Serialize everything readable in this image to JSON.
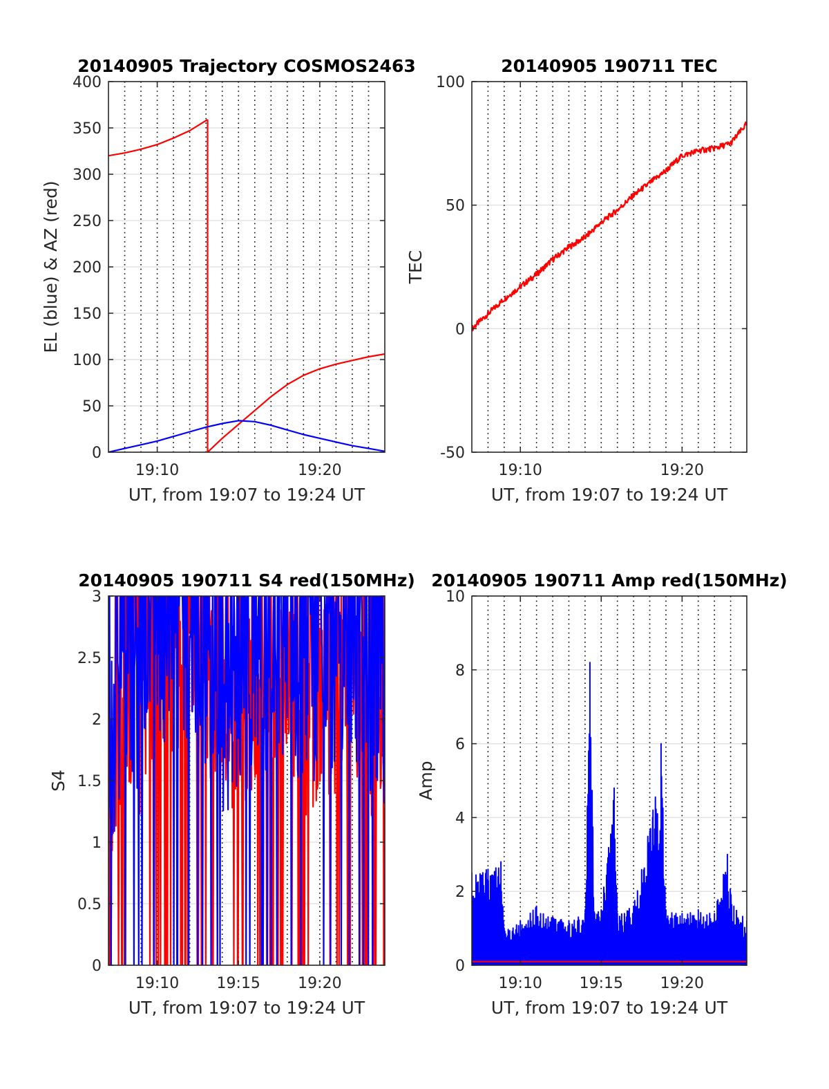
{
  "chart_data": [
    {
      "type": "line",
      "title": "20140905 Trajectory COSMOS2463",
      "xlabel": "UT, from 19:07 to 19:24 UT",
      "ylabel": "EL (blue) & AZ (red)",
      "xlim": [
        7,
        24
      ],
      "ylim": [
        0,
        400
      ],
      "xticks": [
        10,
        20
      ],
      "xtick_labels": [
        "19:10",
        "19:20"
      ],
      "yticks": [
        0,
        50,
        100,
        150,
        200,
        250,
        300,
        350,
        400
      ],
      "ytick_labels": [
        "0",
        "50",
        "100",
        "150",
        "200",
        "250",
        "300",
        "350",
        "400"
      ],
      "grid": true,
      "colors": {
        "el": "#0000ff",
        "az": "#ff0000"
      },
      "series": [
        {
          "key": "az_a",
          "color": "#ff0000",
          "x": [
            7,
            8,
            9,
            10,
            11,
            12,
            13.1
          ],
          "y": [
            320,
            323,
            327,
            332,
            339,
            347,
            359
          ]
        },
        {
          "key": "az_b",
          "color": "#ff0000",
          "x": [
            13.1,
            13.1,
            14,
            15,
            16,
            17,
            18,
            19,
            20,
            21,
            22,
            23,
            24
          ],
          "y": [
            359,
            0,
            15,
            30,
            45,
            60,
            73,
            83,
            90,
            95,
            99,
            103,
            106
          ]
        },
        {
          "key": "el",
          "color": "#0000ff",
          "x": [
            7,
            8,
            9,
            10,
            11,
            12,
            13,
            14,
            15,
            16,
            17,
            18,
            19,
            20,
            21,
            22,
            23,
            24
          ],
          "y": [
            0,
            4,
            8,
            12,
            17,
            22,
            27,
            31,
            34,
            33,
            29,
            24,
            19,
            15,
            11,
            7,
            4,
            1
          ]
        }
      ]
    },
    {
      "type": "line",
      "title": "20140905 190711 TEC",
      "xlabel": "UT, from 19:07 to 19:24 UT",
      "ylabel": "TEC",
      "xlim": [
        7,
        24
      ],
      "ylim": [
        -50,
        100
      ],
      "xticks": [
        10,
        20
      ],
      "xtick_labels": [
        "19:10",
        "19:20"
      ],
      "yticks": [
        -50,
        0,
        50,
        100
      ],
      "ytick_labels": [
        "-50",
        "0",
        "50",
        "100"
      ],
      "grid": true,
      "series": [
        {
          "key": "tec",
          "color": "#ff0000",
          "x": [
            7,
            8,
            9,
            10,
            11,
            12,
            13,
            14,
            15,
            16,
            17,
            18,
            19,
            20,
            21,
            22,
            23,
            24
          ],
          "y": [
            0,
            6,
            12,
            17,
            22,
            28,
            33,
            37,
            43,
            48,
            54,
            59,
            64,
            70,
            72,
            73,
            75,
            83
          ]
        }
      ]
    },
    {
      "type": "line",
      "title": "20140905 190711 S4 red(150MHz)",
      "xlabel": "UT, from 19:07 to 19:24 UT",
      "ylabel": "S4",
      "xlim": [
        7,
        24
      ],
      "ylim": [
        0,
        3
      ],
      "xticks": [
        10,
        15,
        20
      ],
      "xtick_labels": [
        "19:10",
        "19:15",
        "19:20"
      ],
      "yticks": [
        0,
        0.5,
        1,
        1.5,
        2,
        2.5,
        3
      ],
      "ytick_labels": [
        "0",
        "0.5",
        "1",
        "1.5",
        "2",
        "2.5",
        "3"
      ],
      "grid": true,
      "series": [
        {
          "key": "s4_red",
          "color": "#ff0000",
          "x": [
            7,
            8,
            9,
            10,
            11,
            12,
            13,
            14,
            15,
            16,
            17,
            18,
            19,
            20,
            21,
            22,
            23,
            24
          ],
          "y": [
            1.2,
            2.4,
            2.0,
            2.6,
            2.3,
            2.5,
            2.2,
            1.9,
            1.9,
            2.1,
            2.2,
            2.3,
            2.0,
            2.1,
            2.2,
            2.3,
            2.0,
            1.9
          ]
        },
        {
          "key": "s4_blue",
          "color": "#0000ff",
          "x": [
            7,
            8,
            9,
            10,
            11,
            12,
            13,
            14,
            15,
            16,
            17,
            18,
            19,
            20,
            21,
            22,
            23,
            24
          ],
          "y": [
            1.6,
            2.4,
            2.1,
            2.7,
            2.4,
            2.6,
            2.3,
            2.0,
            2.1,
            2.3,
            2.4,
            2.5,
            2.2,
            2.3,
            2.4,
            2.5,
            2.2,
            2.1
          ]
        }
      ]
    },
    {
      "type": "line",
      "title": "20140905 190711 Amp red(150MHz)",
      "xlabel": "UT, from 19:07 to 19:24 UT",
      "ylabel": "Amp",
      "xlim": [
        7,
        24
      ],
      "ylim": [
        0,
        10
      ],
      "xticks": [
        10,
        15,
        20
      ],
      "xtick_labels": [
        "19:10",
        "19:15",
        "19:20"
      ],
      "yticks": [
        0,
        2,
        4,
        6,
        8,
        10
      ],
      "ytick_labels": [
        "0",
        "2",
        "4",
        "6",
        "8",
        "10"
      ],
      "grid": true,
      "series": [
        {
          "key": "amp_blue",
          "color": "#0000ff",
          "x": [
            7,
            8,
            8.8,
            9,
            10,
            11,
            12,
            13,
            14,
            14.3,
            14.6,
            15,
            15.8,
            16,
            17,
            18.2,
            18.7,
            19,
            20,
            21,
            22,
            22.8,
            23.2,
            24
          ],
          "y": [
            2.5,
            2.6,
            2.8,
            1.0,
            1.2,
            1.6,
            1.3,
            1.2,
            1.4,
            8.2,
            1.4,
            1.5,
            4.8,
            1.4,
            1.6,
            4.2,
            6.0,
            1.5,
            1.4,
            1.5,
            1.4,
            3.0,
            1.6,
            1.2
          ]
        },
        {
          "key": "amp_red",
          "color": "#ff0000",
          "x": [
            7,
            10,
            12,
            14,
            16,
            18,
            20,
            22,
            24
          ],
          "y": [
            0.1,
            0.1,
            0.1,
            0.1,
            0.1,
            0.1,
            0.1,
            0.1,
            0.1
          ]
        }
      ]
    }
  ]
}
